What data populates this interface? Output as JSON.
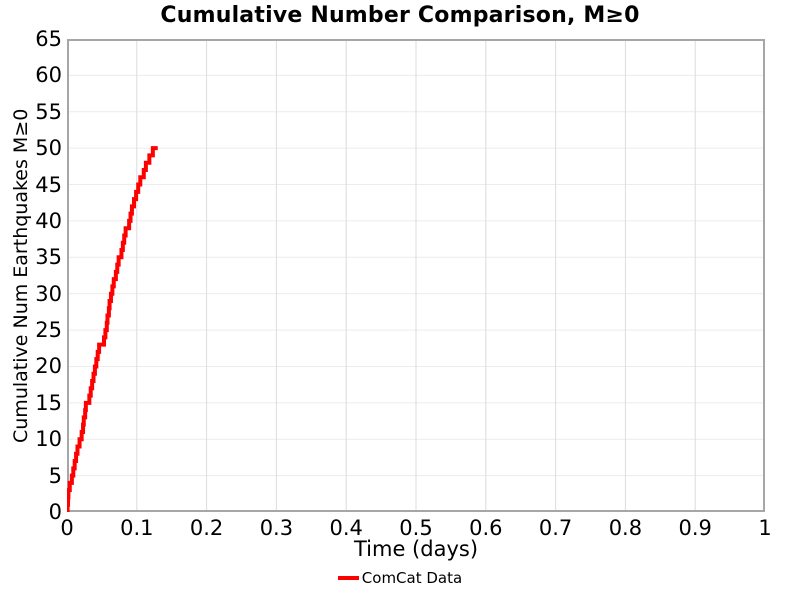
{
  "page": {
    "background": "#ffffff"
  },
  "chart_data": {
    "type": "line",
    "line_style": "step-post",
    "title": "Cumulative Number Comparison, M≥0",
    "xlabel": "Time (days)",
    "ylabel": "Cumulative Num Earthquakes M≥0",
    "xlim": [
      0,
      1
    ],
    "ylim": [
      0,
      65
    ],
    "grid": {
      "horizontal": true,
      "vertical": true
    },
    "xticks": {
      "values": [
        0,
        0.1,
        0.2,
        0.3,
        0.4,
        0.5,
        0.6,
        0.7,
        0.8,
        0.9,
        1
      ],
      "labels": [
        "0",
        "0.1",
        "0.2",
        "0.3",
        "0.4",
        "0.5",
        "0.6",
        "0.7",
        "0.8",
        "0.9",
        "1"
      ]
    },
    "yticks": {
      "values": [
        0,
        5,
        10,
        15,
        20,
        25,
        30,
        35,
        40,
        45,
        50,
        55,
        60,
        65
      ],
      "labels": [
        "0",
        "5",
        "10",
        "15",
        "20",
        "25",
        "30",
        "35",
        "40",
        "45",
        "50",
        "55",
        "60",
        "65"
      ]
    },
    "legend": {
      "position": "bottom-center",
      "entries": [
        {
          "label": "ComCat Data",
          "color": "#ff0000"
        }
      ]
    },
    "style": {
      "frame_color": "#a6a6a6",
      "h_grid_color": "#ececec",
      "v_grid_color": "#dcdcdc",
      "text_color": "#000000",
      "background": "#ffffff"
    },
    "series": [
      {
        "name": "ComCat Data",
        "color": "#ff0000",
        "line_width": 4,
        "kind": "cumulative-step",
        "start_point": {
          "t": 0,
          "count": 0
        },
        "event_times_days": [
          0.0008,
          0.0015,
          0.002,
          0.004,
          0.007,
          0.009,
          0.011,
          0.013,
          0.015,
          0.018,
          0.021,
          0.023,
          0.024,
          0.026,
          0.027,
          0.032,
          0.034,
          0.036,
          0.038,
          0.04,
          0.042,
          0.044,
          0.046,
          0.053,
          0.055,
          0.057,
          0.058,
          0.06,
          0.061,
          0.063,
          0.065,
          0.067,
          0.07,
          0.072,
          0.074,
          0.078,
          0.08,
          0.082,
          0.084,
          0.089,
          0.091,
          0.093,
          0.096,
          0.099,
          0.102,
          0.105,
          0.11,
          0.113,
          0.118,
          0.123
        ],
        "cumulative_counts": [
          1,
          2,
          3,
          4,
          5,
          6,
          7,
          8,
          9,
          10,
          11,
          12,
          13,
          14,
          15,
          16,
          17,
          18,
          19,
          20,
          21,
          22,
          23,
          24,
          25,
          26,
          27,
          28,
          29,
          30,
          31,
          32,
          33,
          34,
          35,
          36,
          37,
          38,
          39,
          40,
          41,
          42,
          43,
          44,
          45,
          46,
          47,
          48,
          49,
          50
        ],
        "final_count": 50,
        "trace_end_time_days": 0.13
      }
    ]
  }
}
